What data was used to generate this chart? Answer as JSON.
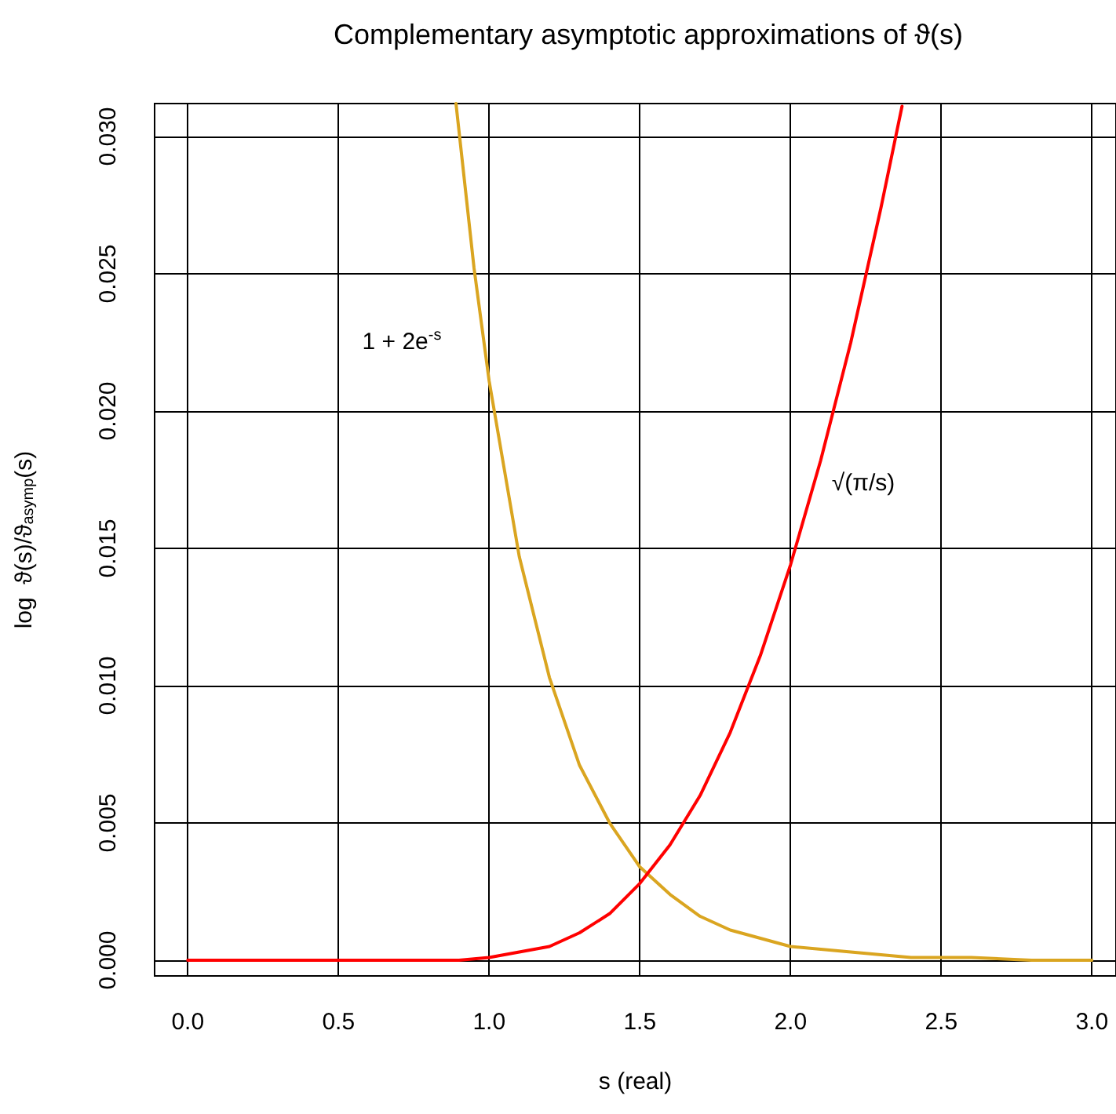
{
  "chart_data": {
    "type": "line",
    "title": "Complementary asymptotic approximations of ϑ(s)",
    "xlabel": "s (real)",
    "ylabel": "log  ϑ(s)/ϑ$_{asymp}$(s)",
    "series": [
      {
        "color": "#daa520",
        "x": [
          0.89,
          0.95,
          1.0,
          1.1,
          1.2,
          1.3,
          1.4,
          1.5,
          1.6,
          1.7,
          1.8,
          2.0,
          2.2,
          2.4,
          2.6,
          2.8,
          3.0
        ],
        "values": [
          0.0312,
          0.0252,
          0.0211,
          0.0147,
          0.0103,
          0.0071,
          0.005,
          0.0034,
          0.0024,
          0.0016,
          0.0011,
          0.0005,
          0.0003,
          0.0001,
          0.0001,
          0.0,
          0.0
        ]
      },
      {
        "color": "#ff0000",
        "x": [
          0.0,
          0.2,
          0.4,
          0.6,
          0.8,
          0.9,
          1.0,
          1.1,
          1.2,
          1.3,
          1.4,
          1.5,
          1.6,
          1.7,
          1.8,
          1.9,
          2.0,
          2.1,
          2.2,
          2.3,
          2.37
        ],
        "values": [
          0,
          0,
          0,
          0,
          0.0,
          0.0,
          0.0001,
          0.0003,
          0.0005,
          0.001,
          0.0017,
          0.0028,
          0.0042,
          0.006,
          0.0083,
          0.0111,
          0.0144,
          0.0182,
          0.0225,
          0.0274,
          0.0311
        ]
      }
    ],
    "annotations": [
      "1 + 2e$^{-s}$",
      "√(π/s)"
    ],
    "xlim": [
      -0.11,
      3.08
    ],
    "xticks": [
      {
        "value": 0,
        "label": "0.0"
      },
      {
        "value": 0.5,
        "label": "0.5"
      },
      {
        "value": 1,
        "label": "1.0"
      },
      {
        "value": 1.5,
        "label": "1.5"
      },
      {
        "value": 2,
        "label": "2.0"
      },
      {
        "value": 2.5,
        "label": "2.5"
      },
      {
        "value": 3,
        "label": "3.0"
      }
    ],
    "ylim": [
      -0.00057,
      0.0312
    ],
    "yticks": [
      {
        "value": 0,
        "label": "0.000"
      },
      {
        "value": 0.005,
        "label": "0.005"
      },
      {
        "value": 0.01,
        "label": "0.010"
      },
      {
        "value": 0.015,
        "label": "0.015"
      },
      {
        "value": 0.02,
        "label": "0.020"
      },
      {
        "value": 0.025,
        "label": "0.025"
      },
      {
        "value": 0.03,
        "label": "0.030"
      }
    ],
    "grid": true,
    "marker": "none",
    "line_style": "solid"
  }
}
